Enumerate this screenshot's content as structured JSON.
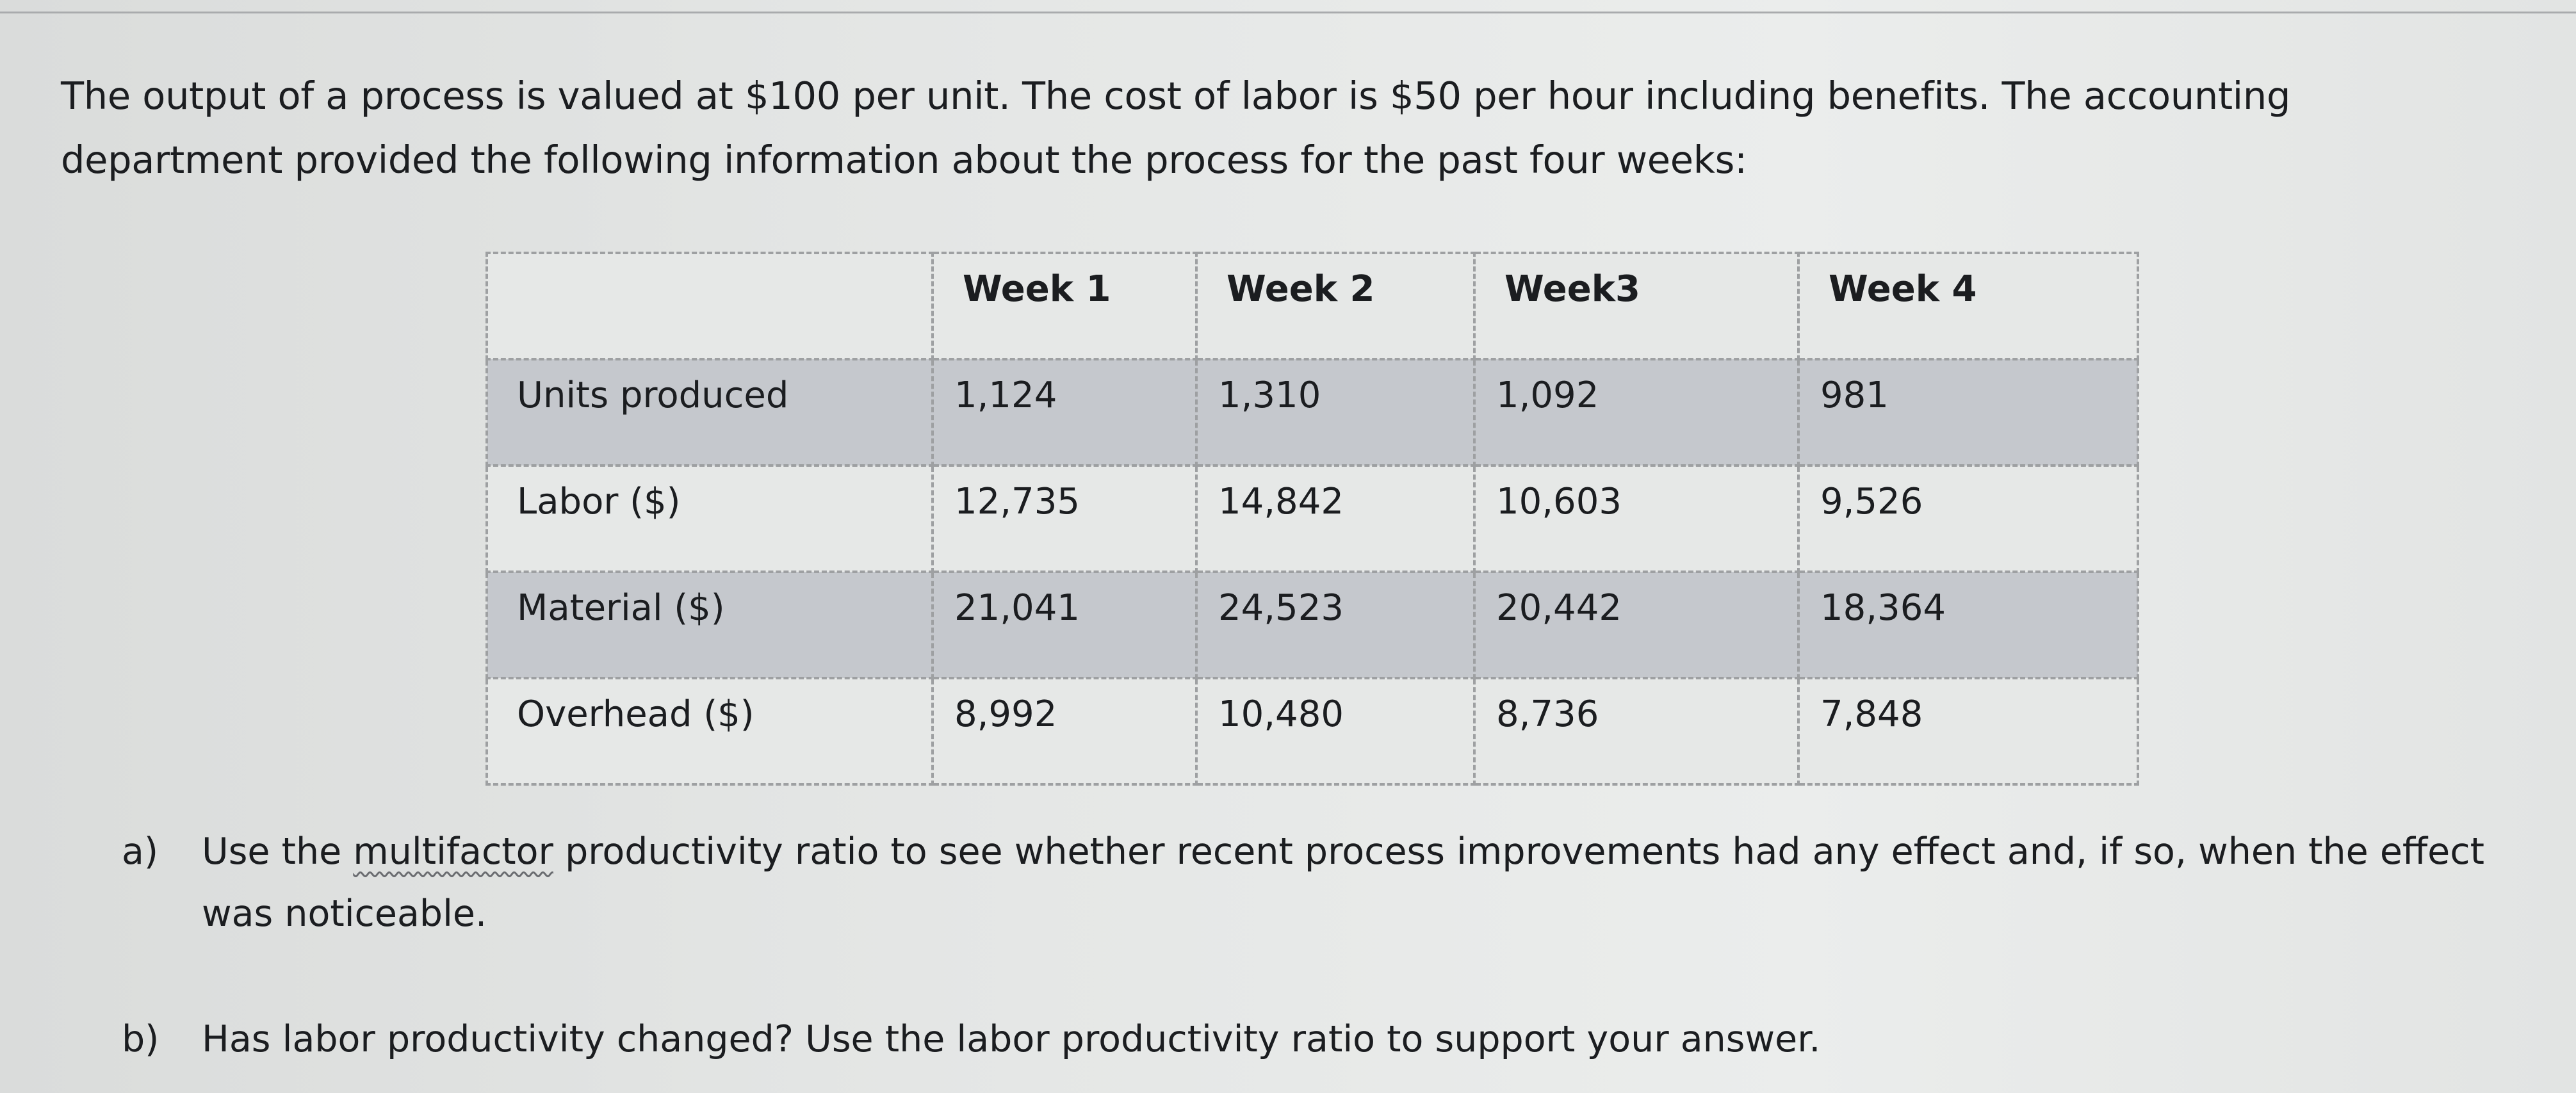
{
  "intro": {
    "line1": "The output of a process is valued at $100 per unit. The cost of labor is $50 per hour including benefits. The accounting",
    "line2": "department provided the following information about the process for the past four weeks:"
  },
  "table": {
    "headers": [
      "",
      "Week 1",
      "Week 2",
      "Week3",
      "Week 4"
    ],
    "rows": [
      {
        "label": "Units produced",
        "values": [
          "1,124",
          "1,310",
          "1,092",
          "981"
        ]
      },
      {
        "label": "Labor ($)",
        "values": [
          "12,735",
          "14,842",
          "10,603",
          "9,526"
        ]
      },
      {
        "label": "Material ($)",
        "values": [
          "21,041",
          "24,523",
          "20,442",
          "18,364"
        ]
      },
      {
        "label": "Overhead ($)",
        "values": [
          "8,992",
          "10,480",
          "8,736",
          "7,848"
        ]
      }
    ]
  },
  "questions": {
    "a": {
      "label": "a)",
      "before": "Use the ",
      "highlight": "multifactor",
      "after": " productivity ratio to see whether recent process improvements had any effect and, if so, when the effect was noticeable."
    },
    "b": {
      "label": "b)",
      "text": "Has labor productivity changed? Use the labor productivity ratio to support your answer."
    }
  }
}
